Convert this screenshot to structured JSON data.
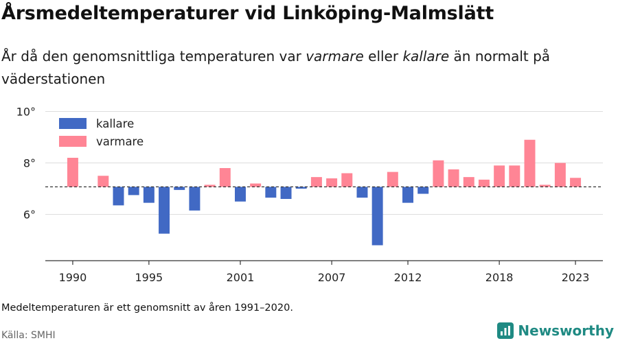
{
  "header": {
    "title": "Årsmedeltemperaturer vid Linköping-Malmslätt",
    "subtitle_pre": "År då den genomsnittliga temperaturen var ",
    "subtitle_warm": "varmare",
    "subtitle_mid": " eller ",
    "subtitle_cold": "kallare",
    "subtitle_post": " än normalt på väderstationen"
  },
  "footer": {
    "note": "Medeltemperaturen är ett genomsnitt av åren 1991–2020.",
    "source": "Källa: SMHI",
    "brand": "Newsworthy"
  },
  "colors": {
    "cold": "#4169c4",
    "warm": "#ff8595",
    "brand": "#1f8a83"
  },
  "chart_data": {
    "type": "bar",
    "baseline": 7.07,
    "ylim": [
      4.2,
      10.6
    ],
    "yticks": [
      6,
      8,
      10
    ],
    "ytick_labels": [
      "6°",
      "8°",
      "10°"
    ],
    "xlim": [
      1988.2,
      2024.8
    ],
    "xticks": [
      1990,
      1995,
      2001,
      2007,
      2012,
      2018,
      2023
    ],
    "xtick_labels": [
      "1990",
      "1995",
      "2001",
      "2007",
      "2012",
      "2018",
      "2023"
    ],
    "legend": {
      "position": "top-left",
      "entries": [
        {
          "label": "kallare",
          "series": "cold"
        },
        {
          "label": "varmare",
          "series": "warm"
        }
      ]
    },
    "years": [
      1990,
      1991,
      1992,
      1993,
      1994,
      1995,
      1996,
      1997,
      1998,
      1999,
      2000,
      2001,
      2002,
      2003,
      2004,
      2005,
      2006,
      2007,
      2008,
      2009,
      2010,
      2011,
      2012,
      2013,
      2014,
      2015,
      2016,
      2017,
      2018,
      2019,
      2020,
      2021,
      2022,
      2023
    ],
    "values": [
      8.2,
      null,
      7.5,
      6.35,
      6.75,
      6.45,
      5.25,
      6.95,
      6.15,
      7.15,
      7.8,
      6.5,
      7.2,
      6.65,
      6.6,
      7.0,
      7.45,
      7.4,
      7.6,
      6.65,
      4.8,
      7.65,
      6.45,
      6.8,
      8.1,
      7.75,
      7.45,
      7.35,
      7.9,
      7.9,
      8.9,
      7.15,
      8.0,
      7.42
    ]
  }
}
